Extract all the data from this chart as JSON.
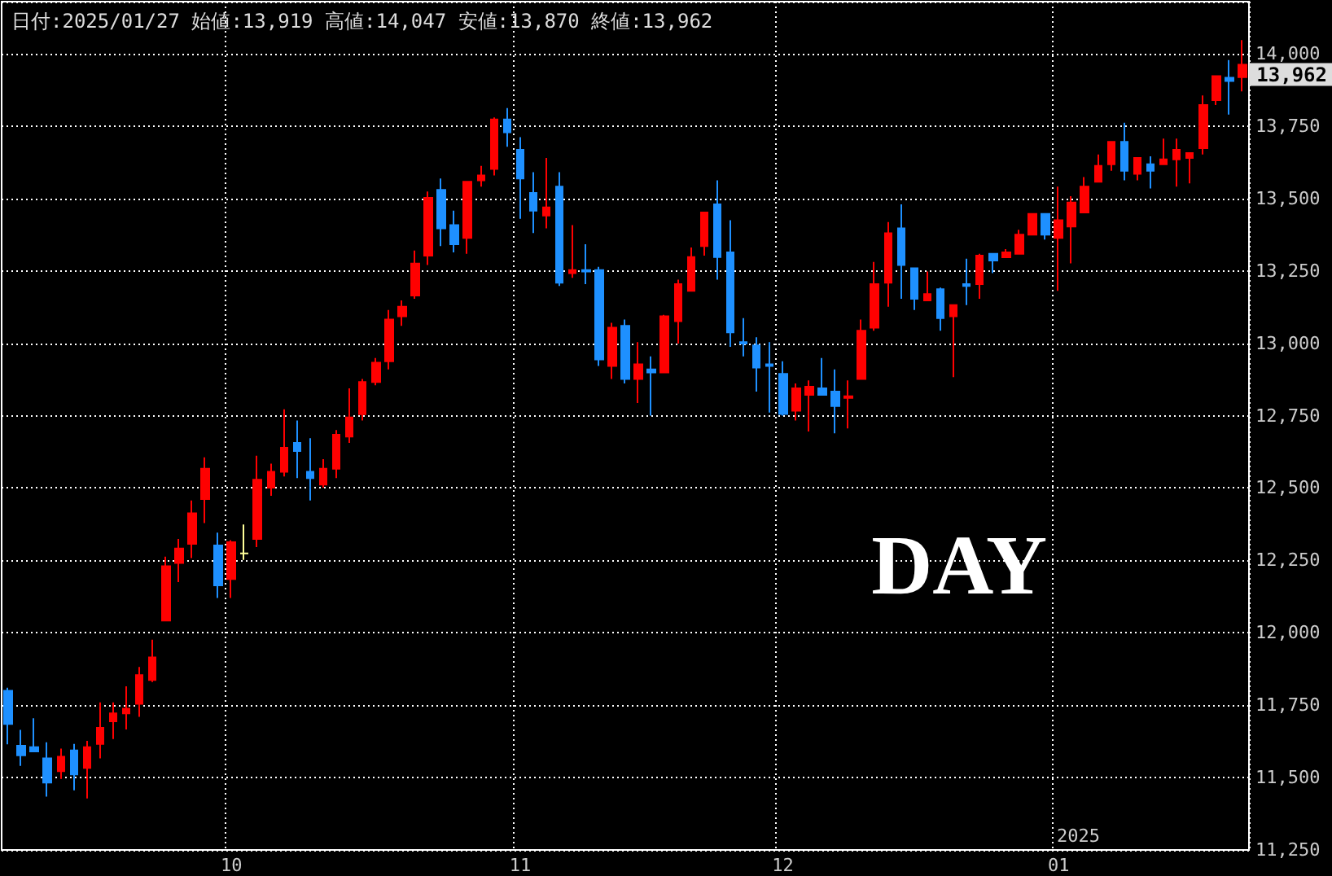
{
  "chart_data": {
    "type": "candlestick",
    "title": "日付:2025/01/27 始値:13,919 高値:14,047 安値:13,870 終値:13,962",
    "categories": [
      null,
      null,
      null,
      null,
      null,
      null,
      null,
      null,
      null,
      null,
      null,
      null,
      null,
      null,
      null,
      null,
      null,
      "10",
      null,
      null,
      null,
      null,
      null,
      null,
      null,
      null,
      null,
      null,
      null,
      null,
      null,
      null,
      null,
      null,
      null,
      null,
      null,
      null,
      null,
      "11",
      null,
      null,
      null,
      null,
      null,
      null,
      null,
      null,
      null,
      null,
      null,
      null,
      null,
      null,
      null,
      null,
      null,
      null,
      null,
      "12",
      null,
      null,
      null,
      null,
      null,
      null,
      null,
      null,
      null,
      null,
      null,
      null,
      null,
      null,
      null,
      null,
      null,
      null,
      null,
      null,
      "01",
      null,
      null,
      null,
      null,
      null,
      null,
      null,
      null,
      null,
      null,
      null,
      null,
      null,
      null
    ],
    "ohlc": [
      [
        11800,
        11810,
        11615,
        11685
      ],
      [
        11610,
        11665,
        11540,
        11577
      ],
      [
        11605,
        11705,
        11588,
        11590
      ],
      [
        11566,
        11622,
        11434,
        11483
      ],
      [
        11522,
        11600,
        11495,
        11572
      ],
      [
        11594,
        11616,
        11456,
        11511
      ],
      [
        11533,
        11627,
        11428,
        11605
      ],
      [
        11616,
        11760,
        11566,
        11672
      ],
      [
        11694,
        11760,
        11633,
        11722
      ],
      [
        11722,
        11815,
        11666,
        11738
      ],
      [
        11755,
        11882,
        11710,
        11854
      ],
      [
        11837,
        11976,
        11830,
        11915
      ],
      [
        12042,
        12263,
        12040,
        12230
      ],
      [
        12241,
        12324,
        12175,
        12291
      ],
      [
        12307,
        12457,
        12258,
        12413
      ],
      [
        12462,
        12606,
        12379,
        12567
      ],
      [
        12302,
        12346,
        12120,
        12164
      ],
      [
        12186,
        12320,
        12120,
        12313
      ],
      [
        12274,
        12374,
        12252,
        12274
      ],
      [
        12324,
        12612,
        12296,
        12529
      ],
      [
        12501,
        12584,
        12473,
        12556
      ],
      [
        12556,
        12772,
        12540,
        12639
      ],
      [
        12656,
        12733,
        12534,
        12628
      ],
      [
        12556,
        12672,
        12457,
        12534
      ],
      [
        12512,
        12600,
        12501,
        12567
      ],
      [
        12567,
        12700,
        12534,
        12684
      ],
      [
        12678,
        12844,
        12656,
        12744
      ],
      [
        12755,
        12877,
        12733,
        12866
      ],
      [
        12866,
        12949,
        12855,
        12933
      ],
      [
        12938,
        13115,
        12910,
        13082
      ],
      [
        13093,
        13148,
        13060,
        13126
      ],
      [
        13165,
        13320,
        13154,
        13275
      ],
      [
        13303,
        13524,
        13270,
        13502
      ],
      [
        13530,
        13569,
        13336,
        13397
      ],
      [
        13408,
        13458,
        13314,
        13342
      ],
      [
        13364,
        13560,
        13309,
        13558
      ],
      [
        13563,
        13613,
        13541,
        13580
      ],
      [
        13602,
        13780,
        13580,
        13773
      ],
      [
        13773,
        13812,
        13679,
        13729
      ],
      [
        13668,
        13712,
        13430,
        13569
      ],
      [
        13519,
        13591,
        13381,
        13458
      ],
      [
        13441,
        13640,
        13397,
        13469
      ],
      [
        13541,
        13591,
        13198,
        13209
      ],
      [
        13242,
        13408,
        13226,
        13253
      ],
      [
        13253,
        13342,
        13204,
        13248
      ],
      [
        13253,
        13264,
        12922,
        12944
      ],
      [
        12922,
        13071,
        12877,
        13054
      ],
      [
        13060,
        13082,
        12861,
        12877
      ],
      [
        12877,
        13004,
        12794,
        12927
      ],
      [
        12910,
        12955,
        12750,
        12899
      ],
      [
        12899,
        13098,
        12899,
        13093
      ],
      [
        13076,
        13220,
        12999,
        13204
      ],
      [
        13181,
        13331,
        13181,
        13298
      ],
      [
        13336,
        13452,
        13303,
        13452
      ],
      [
        13480,
        13563,
        13220,
        13298
      ],
      [
        13314,
        13425,
        12988,
        13038
      ],
      [
        13004,
        13087,
        12955,
        12999
      ],
      [
        12993,
        13021,
        12833,
        12916
      ],
      [
        12927,
        13004,
        12761,
        12922
      ],
      [
        12894,
        12938,
        12750,
        12756
      ],
      [
        12767,
        12861,
        12733,
        12844
      ],
      [
        12822,
        12872,
        12695,
        12850
      ],
      [
        12844,
        12949,
        12822,
        12822
      ],
      [
        12833,
        12910,
        12689,
        12783
      ],
      [
        12811,
        12872,
        12706,
        12817
      ],
      [
        12877,
        13082,
        12877,
        13043
      ],
      [
        13054,
        13281,
        13043,
        13204
      ],
      [
        13209,
        13419,
        13126,
        13380
      ],
      [
        13397,
        13480,
        13154,
        13270
      ],
      [
        13259,
        13259,
        13115,
        13154
      ],
      [
        13148,
        13248,
        13148,
        13170
      ],
      [
        13187,
        13192,
        13043,
        13087
      ],
      [
        13093,
        13132,
        12883,
        13132
      ],
      [
        13204,
        13292,
        13132,
        13198
      ],
      [
        13204,
        13309,
        13154,
        13303
      ],
      [
        13309,
        13309,
        13242,
        13286
      ],
      [
        13297,
        13325,
        13297,
        13314
      ],
      [
        13309,
        13392,
        13309,
        13375
      ],
      [
        13375,
        13447,
        13375,
        13447
      ],
      [
        13447,
        13447,
        13358,
        13375
      ],
      [
        13364,
        13541,
        13181,
        13425
      ],
      [
        13403,
        13508,
        13276,
        13486
      ],
      [
        13452,
        13574,
        13452,
        13541
      ],
      [
        13558,
        13652,
        13558,
        13613
      ],
      [
        13618,
        13696,
        13596,
        13696
      ],
      [
        13696,
        13762,
        13563,
        13596
      ],
      [
        13585,
        13640,
        13563,
        13640
      ],
      [
        13618,
        13646,
        13535,
        13596
      ],
      [
        13618,
        13707,
        13618,
        13635
      ],
      [
        13635,
        13707,
        13541,
        13668
      ],
      [
        13640,
        13657,
        13552,
        13657
      ],
      [
        13674,
        13856,
        13652,
        13823
      ],
      [
        13840,
        13923,
        13823,
        13923
      ],
      [
        13917,
        13978,
        13790,
        13906
      ],
      [
        13919,
        14047,
        13870,
        13962
      ]
    ],
    "colors": [
      "#1e90ff",
      "#1e90ff",
      "#1e90ff",
      "#1e90ff",
      "#ff0000",
      "#1e90ff",
      "#ff0000",
      "#ff0000",
      "#ff0000",
      "#ff0000",
      "#ff0000",
      "#ff0000",
      "#ff0000",
      "#ff0000",
      "#ff0000",
      "#ff0000",
      "#1e90ff",
      "#ff0000",
      "#ffff99",
      "#ff0000",
      "#ff0000",
      "#ff0000",
      "#1e90ff",
      "#1e90ff",
      "#ff0000",
      "#ff0000",
      "#ff0000",
      "#ff0000",
      "#ff0000",
      "#ff0000",
      "#ff0000",
      "#ff0000",
      "#ff0000",
      "#1e90ff",
      "#1e90ff",
      "#ff0000",
      "#ff0000",
      "#ff0000",
      "#1e90ff",
      "#1e90ff",
      "#1e90ff",
      "#ff0000",
      "#1e90ff",
      "#ff0000",
      "#1e90ff",
      "#1e90ff",
      "#ff0000",
      "#1e90ff",
      "#ff0000",
      "#1e90ff",
      "#ff0000",
      "#ff0000",
      "#ff0000",
      "#ff0000",
      "#1e90ff",
      "#1e90ff",
      "#1e90ff",
      "#1e90ff",
      "#1e90ff",
      "#1e90ff",
      "#ff0000",
      "#ff0000",
      "#1e90ff",
      "#1e90ff",
      "#ff0000",
      "#ff0000",
      "#ff0000",
      "#ff0000",
      "#1e90ff",
      "#1e90ff",
      "#ff0000",
      "#1e90ff",
      "#ff0000",
      "#1e90ff",
      "#ff0000",
      "#1e90ff",
      "#ff0000",
      "#ff0000",
      "#ff0000",
      "#1e90ff",
      "#ff0000",
      "#ff0000",
      "#ff0000",
      "#ff0000",
      "#ff0000",
      "#1e90ff",
      "#ff0000",
      "#1e90ff",
      "#ff0000",
      "#ff0000",
      "#ff0000",
      "#ff0000",
      "#ff0000",
      "#1e90ff",
      "#ff0000"
    ],
    "ylim": [
      11250,
      14180
    ],
    "yticks": [
      {
        "value": 11250,
        "label": "11,250"
      },
      {
        "value": 11500,
        "label": "11,500"
      },
      {
        "value": 11750,
        "label": "11,750"
      },
      {
        "value": 12000,
        "label": "12,000"
      },
      {
        "value": 12250,
        "label": "12,250"
      },
      {
        "value": 12500,
        "label": "12,500"
      },
      {
        "value": 12750,
        "label": "12,750"
      },
      {
        "value": 13000,
        "label": "13,000"
      },
      {
        "value": 13250,
        "label": "13,250"
      },
      {
        "value": 13500,
        "label": "13,500"
      },
      {
        "value": 13750,
        "label": "13,750"
      },
      {
        "value": 14000,
        "label": "14,000"
      }
    ],
    "grid": true,
    "annotations": [
      "DAY",
      "2025",
      "13,962"
    ]
  }
}
